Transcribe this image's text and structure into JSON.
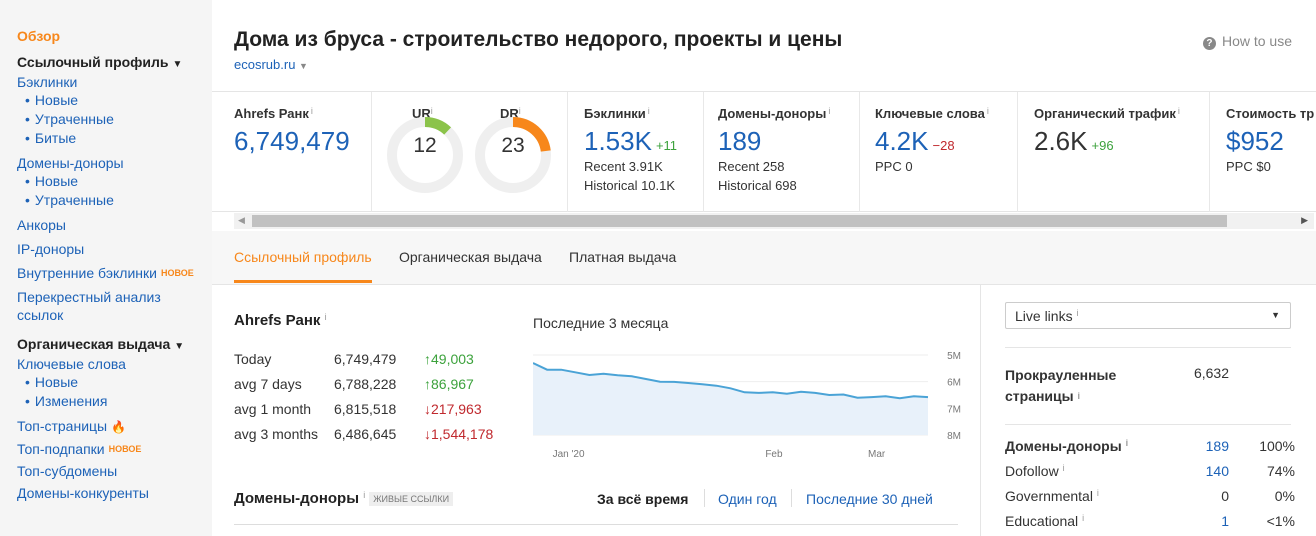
{
  "sidebar": {
    "overview": "Обзор",
    "link_profile": "Ссылочный профиль",
    "backlinks": "Бэклинки",
    "backlinks_new": "Новые",
    "backlinks_lost": "Утраченные",
    "backlinks_broken": "Битые",
    "ref_domains": "Домены-доноры",
    "ref_domains_new": "Новые",
    "ref_domains_lost": "Утраченные",
    "anchors": "Анкоры",
    "ip_donors": "IP-доноры",
    "internal_backlinks": "Внутренние бэклинки",
    "new_badge": "НОВОЕ",
    "cross_analysis": "Перекрестный анализ ссылок",
    "organic": "Органическая выдача",
    "keywords": "Ключевые слова",
    "keywords_new": "Новые",
    "keywords_changes": "Изменения",
    "top_pages": "Топ-страницы",
    "top_subfolders": "Топ-подпапки",
    "top_subdomains": "Топ-субдомены",
    "competing_domains": "Домены-конкуренты"
  },
  "header": {
    "title": "Дома из бруса - строительство недорого, проекты и цены",
    "domain": "ecosrub.ru",
    "how_to_use": "How to use"
  },
  "metrics": {
    "ahrefs_rank": {
      "label": "Ahrefs Ранк",
      "value": "6,749,479"
    },
    "ur": {
      "label": "UR",
      "value": "12",
      "score": 12
    },
    "dr": {
      "label": "DR",
      "value": "23",
      "score": 23
    },
    "backlinks": {
      "label": "Бэклинки",
      "value": "1.53K",
      "delta": "+11",
      "recent": "Recent 3.91K",
      "historical": "Historical 10.1K"
    },
    "ref_domains": {
      "label": "Домены-доноры",
      "value": "189",
      "recent": "Recent 258",
      "historical": "Historical 698"
    },
    "keywords": {
      "label": "Ключевые слова",
      "value": "4.2K",
      "delta": "−28",
      "ppc": "PPC 0"
    },
    "organic_traffic": {
      "label": "Органический трафик",
      "value": "2.6K",
      "delta": "+96"
    },
    "traffic_value": {
      "label": "Стоимость тр",
      "value": "$952",
      "ppc": "PPC $0"
    }
  },
  "tabs": [
    "Ссылочный профиль",
    "Органическая выдача",
    "Платная выдача"
  ],
  "rank": {
    "title": "Ahrefs Ранк",
    "rows": [
      {
        "period": "Today",
        "value": "6,749,479",
        "change": "↑49,003",
        "dir": "up"
      },
      {
        "period": "avg 7 days",
        "value": "6,788,228",
        "change": "↑86,967",
        "dir": "up"
      },
      {
        "period": "avg 1 month",
        "value": "6,815,518",
        "change": "↓217,963",
        "dir": "down"
      },
      {
        "period": "avg 3 months",
        "value": "6,486,645",
        "change": "↓1,544,178",
        "dir": "down"
      }
    ]
  },
  "chart_title": "Последние 3 месяца",
  "chart_data": {
    "type": "area",
    "title": "Последние 3 месяца",
    "y_tick_labels": [
      "5M",
      "6M",
      "7M",
      "8M"
    ],
    "ylim": [
      5000000,
      8000000
    ],
    "y_inverted": true,
    "x_tick_labels": [
      "Jan '20",
      "Feb",
      "Mar"
    ],
    "series": [
      {
        "values": [
          5300000,
          5550000,
          5550000,
          5650000,
          5750000,
          5700000,
          5760000,
          5800000,
          5900000,
          6000000,
          6010000,
          6050000,
          6100000,
          6150000,
          6250000,
          6400000,
          6420000,
          6400000,
          6450000,
          6380000,
          6420000,
          6500000,
          6480000,
          6600000,
          6580000,
          6550000,
          6620000,
          6550000,
          6580000
        ]
      }
    ]
  },
  "donors": {
    "title": "Домены-доноры",
    "live_badge": "ЖИВЫЕ ССЫЛКИ",
    "periods": [
      "За всё время",
      "Один год",
      "Последние 30 дней"
    ]
  },
  "right_panel": {
    "select": "Live links",
    "crawled_label": "Прокрауленные страницы",
    "crawled_value": "6,632",
    "rows": [
      {
        "label": "Домены-доноры",
        "value": "189",
        "pct": "100%"
      },
      {
        "label": "Dofollow",
        "value": "140",
        "pct": "74%"
      },
      {
        "label": "Governmental",
        "value": "0",
        "pct": "0%"
      },
      {
        "label": "Educational",
        "value": "1",
        "pct": "<1%"
      }
    ]
  },
  "colors": {
    "accent": "#f7871b",
    "link": "#1d62b7",
    "positive": "#3ca23c",
    "negative": "#c0292e",
    "chart_line": "#4aa3d6"
  }
}
